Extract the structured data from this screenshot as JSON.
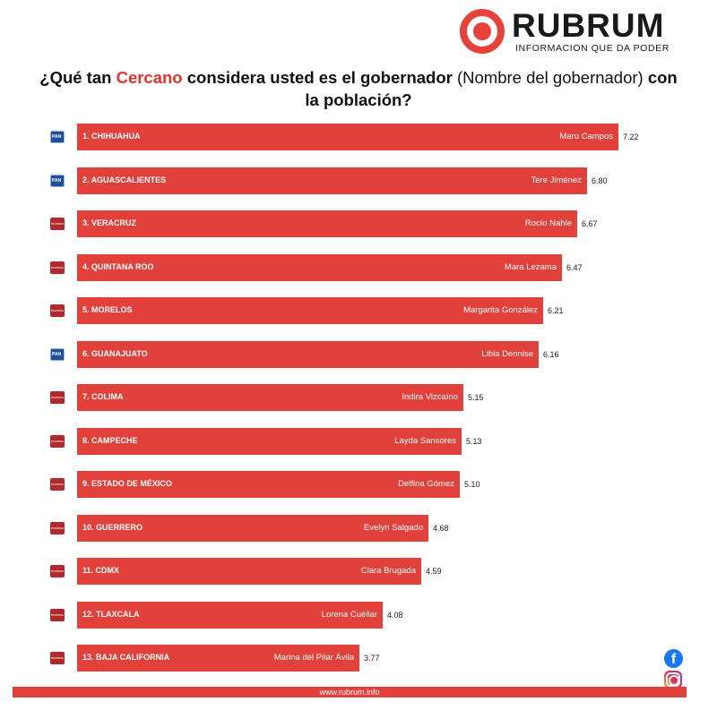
{
  "brand": {
    "name": "RUBRUM",
    "tagline": "INFORMACION QUE DA PODER",
    "website": "www.rubrum.info"
  },
  "question": {
    "part1": "¿Qué tan ",
    "highlight": "Cercano",
    "part2": " considera usted es el gobernador ",
    "part3": "(Nombre del gobernador) ",
    "part4": "con la población?"
  },
  "colors": {
    "bar": "#e2403a",
    "highlight": "#e0342c",
    "pan": "#1d4fa1",
    "morena": "#b3282d"
  },
  "chart_data": {
    "type": "bar",
    "orientation": "horizontal",
    "title": "¿Qué tan Cercano considera usted es el gobernador (Nombre del gobernador) con la población?",
    "categories": [
      "1. CHIHUAHUA",
      "2. AGUASCALIENTES",
      "3. VERACRUZ",
      "4. QUINTANA ROO",
      "5. MORELOS",
      "6. GUANAJUATO",
      "7. COLIMA",
      "8. CAMPECHE",
      "9. ESTADO DE MÉXICO",
      "10. GUERRERO",
      "11. CDMX",
      "12. TLAXCALA",
      "13. BAJA CALIFORNIA"
    ],
    "governors": [
      "Maru Campos",
      "Tere Jiménez",
      "Rocío Nahle",
      "Mara Lezama",
      "Margarita González",
      "Libia Dennise",
      "Indira Vizcaíno",
      "Layda Sansores",
      "Delfina Gómez",
      "Evelyn Salgado",
      "Clara Brugada",
      "Lorena Cuéllar",
      "Marina del Pilar Ávila"
    ],
    "parties": [
      "pan",
      "pan",
      "morena",
      "morena",
      "morena",
      "pan",
      "morena",
      "morena",
      "morena",
      "morena",
      "morena",
      "morena",
      "morena"
    ],
    "values": [
      7.22,
      6.8,
      6.67,
      6.47,
      6.21,
      6.16,
      5.15,
      5.13,
      5.1,
      4.68,
      4.59,
      4.08,
      3.77
    ],
    "value_labels": [
      "7.22",
      "6.80",
      "6.67",
      "6.47",
      "6.21",
      "6.16",
      "5.15",
      "5.13",
      "5.10",
      "4.68",
      "4.59",
      "4.08",
      "3.77"
    ],
    "xlim": [
      0,
      7.22
    ],
    "grid": false
  }
}
